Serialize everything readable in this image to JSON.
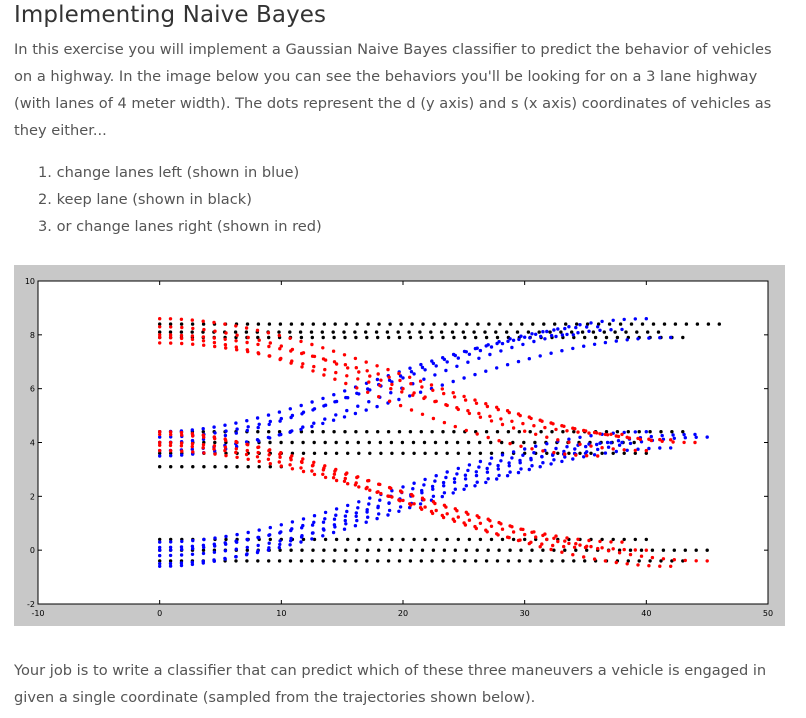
{
  "heading": "Implementing Naive Bayes",
  "intro": "In this exercise you will implement a Gaussian Naive Bayes classifier to predict the behavior of vehicles on a highway. In the image below you can see the behaviors you'll be looking for on a 3 lane highway (with lanes of 4 meter width). The dots represent the d (y axis) and s (x axis) coordinates of vehicles as they either...",
  "behaviors": [
    "1. change lanes left (shown in blue)",
    "2. keep lane (shown in black)",
    "3. or change lanes right (shown in red)"
  ],
  "outro": "Your job is to write a classifier that can predict which of these three maneuvers a vehicle is engaged in given a single coordinate (sampled from the trajectories shown below).",
  "chart_data": {
    "type": "scatter",
    "xlim": [
      -10,
      50
    ],
    "ylim": [
      -2,
      10
    ],
    "x_ticks": [
      -10,
      0,
      10,
      20,
      30,
      40,
      50
    ],
    "y_ticks": [
      -2,
      0,
      2,
      4,
      6,
      8,
      10
    ],
    "grid": false,
    "series": [
      {
        "color": "#000000",
        "segments": [
          {
            "x": [
              0,
              45
            ],
            "y": [
              0.0,
              0.0
            ]
          },
          {
            "x": [
              0,
              43
            ],
            "y": [
              -0.4,
              -0.4
            ]
          },
          {
            "x": [
              0,
              40
            ],
            "y": [
              0.4,
              0.4
            ]
          },
          {
            "x": [
              0,
              39
            ],
            "y": [
              4.0,
              4.0
            ]
          },
          {
            "x": [
              0,
              43
            ],
            "y": [
              4.4,
              4.4
            ]
          },
          {
            "x": [
              0,
              40
            ],
            "y": [
              3.6,
              3.6
            ]
          },
          {
            "x": [
              0,
              10
            ],
            "y": [
              3.1,
              3.1
            ]
          },
          {
            "x": [
              0,
              46
            ],
            "y": [
              8.4,
              8.4
            ]
          },
          {
            "x": [
              0,
              43
            ],
            "y": [
              7.9,
              7.9
            ]
          },
          {
            "x": [
              0,
              41
            ],
            "y": [
              8.1,
              8.1
            ]
          }
        ]
      },
      {
        "color": "#0000ff",
        "segments": [
          {
            "x": [
              0,
              38
            ],
            "y": [
              0.0,
              4.0
            ]
          },
          {
            "x": [
              0,
              45
            ],
            "y": [
              -0.2,
              4.2
            ]
          },
          {
            "x": [
              0,
              42
            ],
            "y": [
              -0.5,
              3.8
            ]
          },
          {
            "x": [
              0,
              40
            ],
            "y": [
              0.3,
              4.4
            ]
          },
          {
            "x": [
              0,
              35
            ],
            "y": [
              -0.6,
              3.6
            ]
          },
          {
            "x": [
              0,
              44
            ],
            "y": [
              0.1,
              4.3
            ]
          },
          {
            "x": [
              0,
              36
            ],
            "y": [
              4.0,
              8.3
            ]
          },
          {
            "x": [
              0,
              40
            ],
            "y": [
              4.2,
              8.6
            ]
          },
          {
            "x": [
              0,
              42
            ],
            "y": [
              3.7,
              7.9
            ]
          },
          {
            "x": [
              0,
              34
            ],
            "y": [
              4.4,
              8.0
            ]
          },
          {
            "x": [
              0,
              38
            ],
            "y": [
              3.5,
              8.2
            ]
          }
        ]
      },
      {
        "color": "#ff0000",
        "segments": [
          {
            "x": [
              0,
              44
            ],
            "y": [
              8.0,
              4.0
            ]
          },
          {
            "x": [
              0,
              40
            ],
            "y": [
              8.3,
              3.7
            ]
          },
          {
            "x": [
              0,
              38
            ],
            "y": [
              7.7,
              4.3
            ]
          },
          {
            "x": [
              0,
              42
            ],
            "y": [
              8.6,
              4.1
            ]
          },
          {
            "x": [
              0,
              36
            ],
            "y": [
              7.9,
              3.5
            ]
          },
          {
            "x": [
              0,
              45
            ],
            "y": [
              4.0,
              -0.4
            ]
          },
          {
            "x": [
              0,
              40
            ],
            "y": [
              3.7,
              0.0
            ]
          },
          {
            "x": [
              0,
              38
            ],
            "y": [
              4.3,
              0.3
            ]
          },
          {
            "x": [
              0,
              42
            ],
            "y": [
              3.9,
              -0.6
            ]
          },
          {
            "x": [
              0,
              35
            ],
            "y": [
              4.4,
              0.1
            ]
          }
        ]
      }
    ]
  }
}
